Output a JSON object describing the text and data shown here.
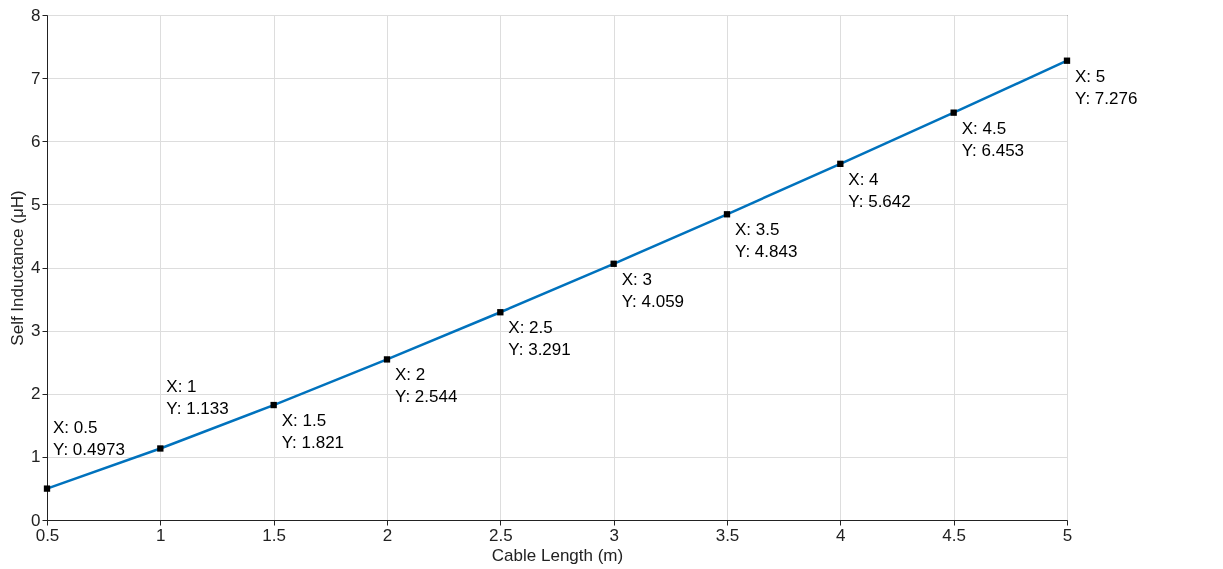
{
  "chart_data": {
    "type": "line",
    "xlabel": "Cable Length (m)",
    "ylabel": "Self Inductance (μH)",
    "x": [
      0.5,
      1,
      1.5,
      2,
      2.5,
      3,
      3.5,
      4,
      4.5,
      5
    ],
    "series": [
      {
        "color": "#0072bd",
        "values": [
          0.4973,
          1.133,
          1.821,
          2.544,
          3.291,
          4.059,
          4.843,
          5.642,
          6.453,
          7.276
        ]
      }
    ],
    "xlim": [
      0.5,
      5
    ],
    "xticks": [
      0.5,
      1,
      1.5,
      2,
      2.5,
      3,
      3.5,
      4,
      4.5,
      5
    ],
    "ylim": [
      0,
      8
    ],
    "yticks": [
      0,
      1,
      2,
      3,
      4,
      5,
      6,
      7,
      8
    ],
    "grid": true,
    "marker": "square",
    "line_style": "solid",
    "annotations": [
      {
        "text": "X: 0.5\nY: 0.4973",
        "x": 0.5,
        "y": 0.4973
      },
      {
        "text": "X: 1\nY: 1.133",
        "x": 1,
        "y": 1.133
      },
      {
        "text": "X: 1.5\nY: 1.821",
        "x": 1.5,
        "y": 1.821
      },
      {
        "text": "X: 2\nY: 2.544",
        "x": 2,
        "y": 2.544
      },
      {
        "text": "X: 2.5\nY: 3.291",
        "x": 2.5,
        "y": 3.291
      },
      {
        "text": "X: 3\nY: 4.059",
        "x": 3,
        "y": 4.059
      },
      {
        "text": "X: 3.5\nY: 4.843",
        "x": 3.5,
        "y": 4.843
      },
      {
        "text": "X: 4\nY: 5.642",
        "x": 4,
        "y": 5.642
      },
      {
        "text": "X: 4.5\nY: 6.453",
        "x": 4.5,
        "y": 6.453
      },
      {
        "text": "X: 5\nY: 7.276",
        "x": 5,
        "y": 7.276
      }
    ]
  }
}
